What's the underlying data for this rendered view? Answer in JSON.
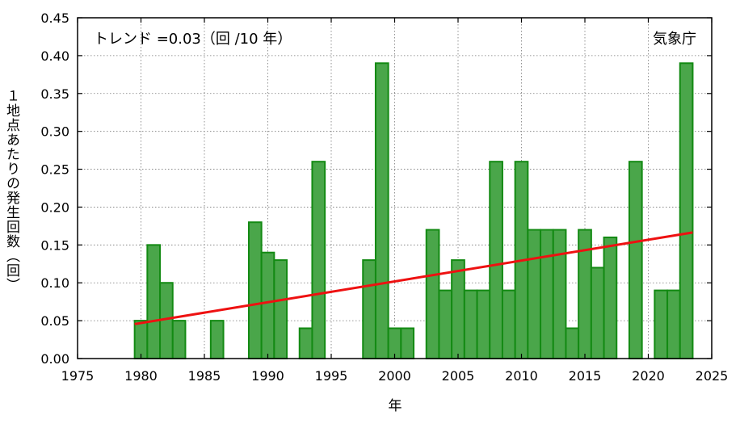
{
  "chart_data": {
    "type": "bar",
    "trend_text": "トレンド =0.03（回 /10 年）",
    "source": "気象庁",
    "xlabel": "年",
    "ylabel": "１地点あたりの発生回数（回）",
    "xlim": [
      1975,
      2025
    ],
    "ylim": [
      0,
      0.45
    ],
    "xticks": [
      "1975",
      "1980",
      "1985",
      "1990",
      "1995",
      "2000",
      "2005",
      "2010",
      "2015",
      "2020",
      "2025"
    ],
    "yticks": [
      "0.00",
      "0.05",
      "0.10",
      "0.15",
      "0.20",
      "0.25",
      "0.30",
      "0.35",
      "0.40",
      "0.45"
    ],
    "grid": true,
    "bar_color": "#4aa64a",
    "bar_edge_color": "#138a13",
    "trend_color": "#ee1111",
    "series": [
      {
        "x": [
          1980,
          1981,
          1982,
          1983,
          1984,
          1985,
          1986,
          1987,
          1988,
          1989,
          1990,
          1991,
          1992,
          1993,
          1994,
          1995,
          1996,
          1997,
          1998,
          1999,
          2000,
          2001,
          2002,
          2003,
          2004,
          2005,
          2006,
          2007,
          2008,
          2009,
          2010,
          2011,
          2012,
          2013,
          2014,
          2015,
          2016,
          2017,
          2018,
          2019,
          2020,
          2021,
          2022,
          2023
        ],
        "values": [
          0.05,
          0.15,
          0.1,
          0.05,
          0,
          0,
          0.05,
          0,
          0,
          0.18,
          0.14,
          0.13,
          0,
          0.04,
          0.26,
          0,
          0,
          0,
          0.13,
          0.39,
          0.04,
          0.04,
          0,
          0.17,
          0.09,
          0.13,
          0.09,
          0.09,
          0.26,
          0.09,
          0.26,
          0.17,
          0.17,
          0.17,
          0.04,
          0.17,
          0.12,
          0.16,
          0,
          0.26,
          0,
          0.09,
          0.09,
          0.39
        ]
      }
    ],
    "trend": {
      "x": [
        1979.5,
        2023.5
      ],
      "y": [
        0.0455,
        0.1665
      ]
    }
  }
}
